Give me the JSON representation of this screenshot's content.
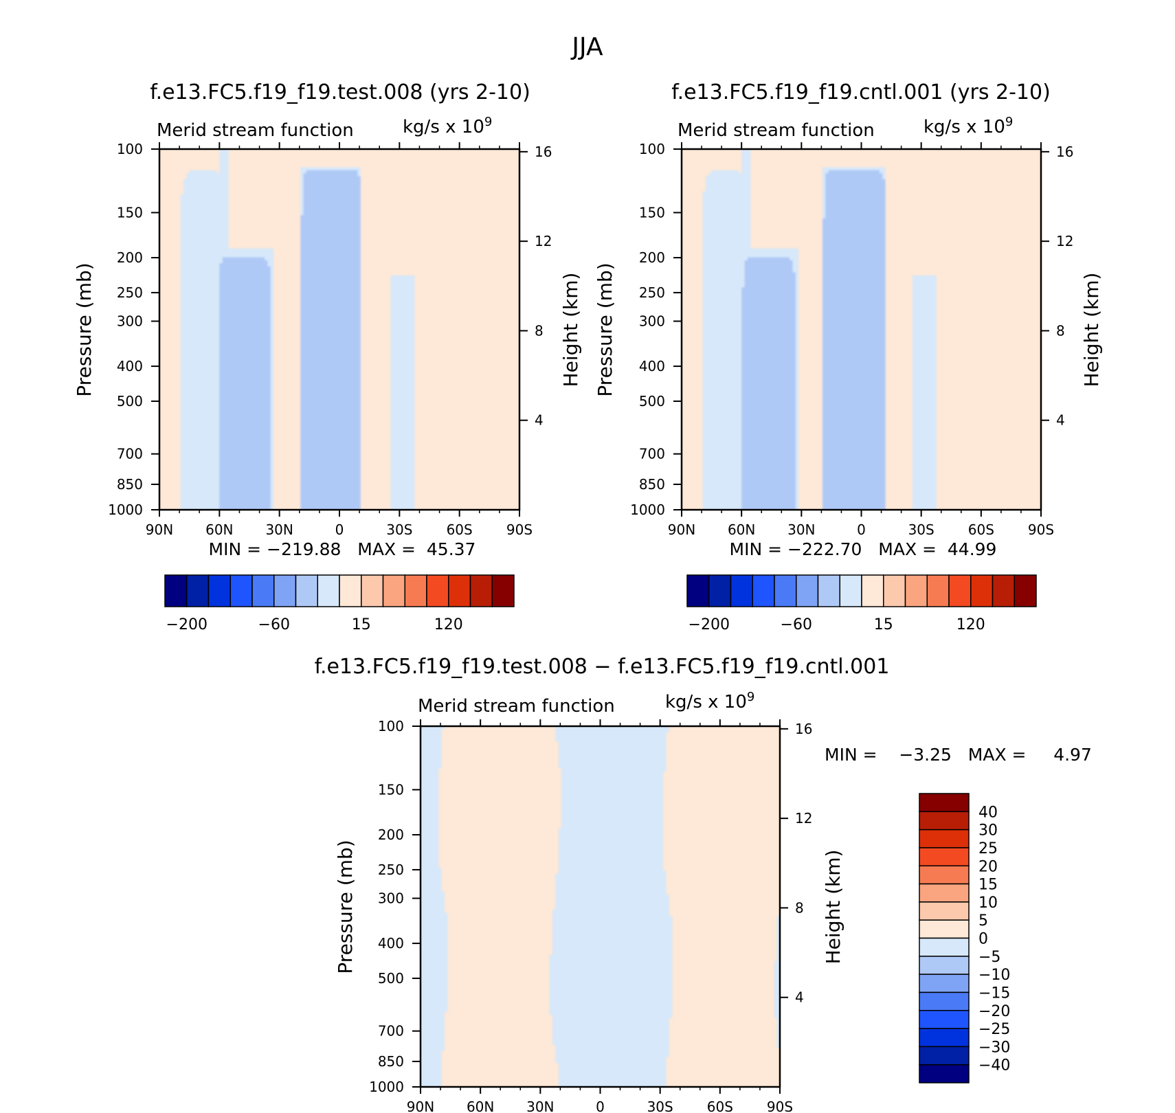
{
  "figure": {
    "title": "JJA"
  },
  "colors": {
    "main_scale": [
      "#000080",
      "#0020A6",
      "#0033DD",
      "#1F55FF",
      "#4A7AF5",
      "#7FA4F5",
      "#AFC9F7",
      "#D6E8FA",
      "#FEE8D7",
      "#FDC9AD",
      "#FAA480",
      "#F77B52",
      "#F44A22",
      "#DD3008",
      "#B81E06",
      "#860000"
    ],
    "diff_scale": [
      "#000080",
      "#0020A6",
      "#0033DD",
      "#1F55FF",
      "#4A7AF5",
      "#7FA4F5",
      "#AFC9F7",
      "#D6E8FA",
      "#FEE8D7",
      "#FDC9AD",
      "#FAA480",
      "#F77B52",
      "#F44A22",
      "#DD3008",
      "#B81E06",
      "#860000"
    ]
  },
  "chart_data": [
    {
      "type": "contour",
      "case_title": "f.e13.FC5.f19_f19.test.008 (yrs 2-10)",
      "left_label": "Merid stream function",
      "units_label": "kg/s x 10",
      "units_exp": "9",
      "ylabel": "Pressure (mb)",
      "ylabel_right": "Height (km)",
      "x_ticks": [
        "90N",
        "60N",
        "30N",
        "0",
        "30S",
        "60S",
        "90S"
      ],
      "y_ticks": [
        100,
        150,
        200,
        250,
        300,
        400,
        500,
        700,
        850,
        1000
      ],
      "y_right_ticks": [
        16,
        12,
        8,
        4
      ],
      "stats": "MIN = −219.88   MAX =  45.37",
      "min": -219.88,
      "max": 45.37,
      "colorbar_labels": [
        "−200",
        "−60",
        "15",
        "120"
      ],
      "cells": [
        {
          "lat0": -11,
          "lat1": 19,
          "p_top": 120,
          "depth": 1.0
        },
        {
          "lat0": 33,
          "lat1": 61,
          "p_top": 200,
          "depth": -0.2
        },
        {
          "lat0": -38,
          "lat1": -26,
          "p_top": 240,
          "depth": -0.04
        },
        {
          "lat0": 55,
          "lat1": 82,
          "p_top": 100,
          "depth": 0.02
        }
      ]
    },
    {
      "type": "contour",
      "case_title": "f.e13.FC5.f19_f19.cntl.001 (yrs 2-10)",
      "left_label": "Merid stream function",
      "units_label": "kg/s x 10",
      "units_exp": "9",
      "ylabel": "Pressure (mb)",
      "ylabel_right": "Height (km)",
      "x_ticks": [
        "90N",
        "60N",
        "30N",
        "0",
        "30S",
        "60S",
        "90S"
      ],
      "y_ticks": [
        100,
        150,
        200,
        250,
        300,
        400,
        500,
        700,
        850,
        1000
      ],
      "y_right_ticks": [
        16,
        12,
        8,
        4
      ],
      "stats": "MIN = −222.70   MAX =  44.99",
      "min": -222.7,
      "max": 44.99,
      "colorbar_labels": [
        "−200",
        "−60",
        "15",
        "120"
      ],
      "cells": [
        {
          "lat0": -12,
          "lat1": 19,
          "p_top": 120,
          "depth": 1.0
        },
        {
          "lat0": 32,
          "lat1": 60,
          "p_top": 200,
          "depth": -0.2
        },
        {
          "lat0": -38,
          "lat1": -26,
          "p_top": 240,
          "depth": -0.04
        },
        {
          "lat0": 55,
          "lat1": 82,
          "p_top": 100,
          "depth": 0.02
        }
      ]
    },
    {
      "type": "contour",
      "case_title": "f.e13.FC5.f19_f19.test.008 − f.e13.FC5.f19_f19.cntl.001",
      "left_label": "Merid stream function",
      "units_label": "kg/s x 10",
      "units_exp": "9",
      "ylabel": "Pressure (mb)",
      "ylabel_right": "Height (km)",
      "x_ticks": [
        "90N",
        "60N",
        "30N",
        "0",
        "30S",
        "60S",
        "90S"
      ],
      "y_ticks": [
        100,
        150,
        200,
        250,
        300,
        400,
        500,
        700,
        850,
        1000
      ],
      "y_right_ticks": [
        16,
        12,
        8,
        4
      ],
      "stats": "MIN =    −3.25   MAX =     4.97",
      "min": -3.25,
      "max": 4.97,
      "colorbar_labels": [
        "40",
        "30",
        "25",
        "20",
        "15",
        "10",
        "5",
        "0",
        "−5",
        "−10",
        "−15",
        "−20",
        "−25",
        "−30",
        "−40"
      ]
    }
  ]
}
